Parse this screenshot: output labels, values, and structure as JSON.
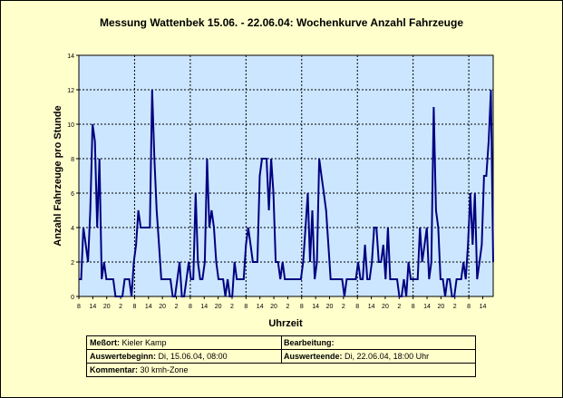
{
  "chart_data": {
    "type": "line",
    "title": "Messung Wattenbek 15.06. - 22.06.04: Wochenkurve Anzahl Fahrzeuge",
    "xlabel": "Uhrzeit",
    "ylabel": "Anzahl Fahrzeuge pro Stunde",
    "ylim": [
      0,
      14
    ],
    "yticks": [
      0,
      2,
      4,
      6,
      8,
      10,
      12,
      14
    ],
    "xticks": [
      "8",
      "14",
      "20",
      "2",
      "8",
      "14",
      "20",
      "2",
      "8",
      "14",
      "20",
      "2",
      "8",
      "14",
      "20",
      "2",
      "8",
      "14",
      "20",
      "2",
      "8",
      "14",
      "20",
      "2",
      "8",
      "14",
      "20",
      "2",
      "8",
      "14"
    ],
    "grid": true,
    "line_color": "#000080",
    "plot_background": "#cce6ff",
    "series": [
      {
        "values": [
          1,
          1,
          4,
          3,
          2,
          5,
          10,
          9,
          4,
          8,
          1,
          2,
          1,
          1,
          1,
          1,
          0,
          0,
          0,
          0,
          1,
          1,
          1,
          0,
          2,
          3,
          5,
          4,
          4,
          4,
          4,
          4,
          12,
          8,
          5,
          3,
          1,
          1,
          1,
          1,
          1,
          0,
          0,
          1,
          2,
          0,
          0,
          1,
          2,
          1,
          1,
          6,
          2,
          1,
          1,
          2,
          8,
          4,
          5,
          4,
          2,
          1,
          1,
          1,
          0,
          1,
          0,
          0,
          2,
          1,
          1,
          1,
          1,
          3,
          4,
          3,
          2,
          2,
          2,
          7,
          8,
          8,
          8,
          5,
          8,
          6,
          2,
          2,
          1,
          2,
          1,
          1,
          1,
          1,
          1,
          1,
          1,
          1,
          2,
          4,
          6,
          2,
          5,
          1,
          2,
          8,
          7,
          6,
          5,
          3,
          1,
          1,
          1,
          1,
          1,
          1,
          0,
          1,
          1,
          1,
          1,
          1,
          2,
          1,
          1,
          3,
          1,
          1,
          2,
          4,
          4,
          2,
          2,
          3,
          1,
          4,
          1,
          1,
          1,
          1,
          0,
          0,
          1,
          0,
          2,
          1,
          1,
          1,
          1,
          4,
          2,
          3,
          4,
          1,
          2,
          11,
          5,
          4,
          1,
          1,
          0,
          1,
          1,
          0,
          0,
          1,
          1,
          1,
          2,
          1,
          3,
          6,
          3,
          6,
          1,
          2,
          3,
          7,
          7,
          9,
          12,
          2
        ]
      }
    ]
  },
  "info": {
    "messort_label": "Meßort:",
    "messort_value": "Kieler Kamp",
    "bearbeitung_label": "Bearbeitung:",
    "bearbeitung_value": "",
    "beginn_label": "Auswertebeginn:",
    "beginn_value": "Di, 15.06.04, 08:00",
    "ende_label": "Auswerteende:",
    "ende_value": "Di, 22.06.04, 18:00 Uhr",
    "kommentar_label": "Kommentar:",
    "kommentar_value": "30 kmh-Zone"
  }
}
